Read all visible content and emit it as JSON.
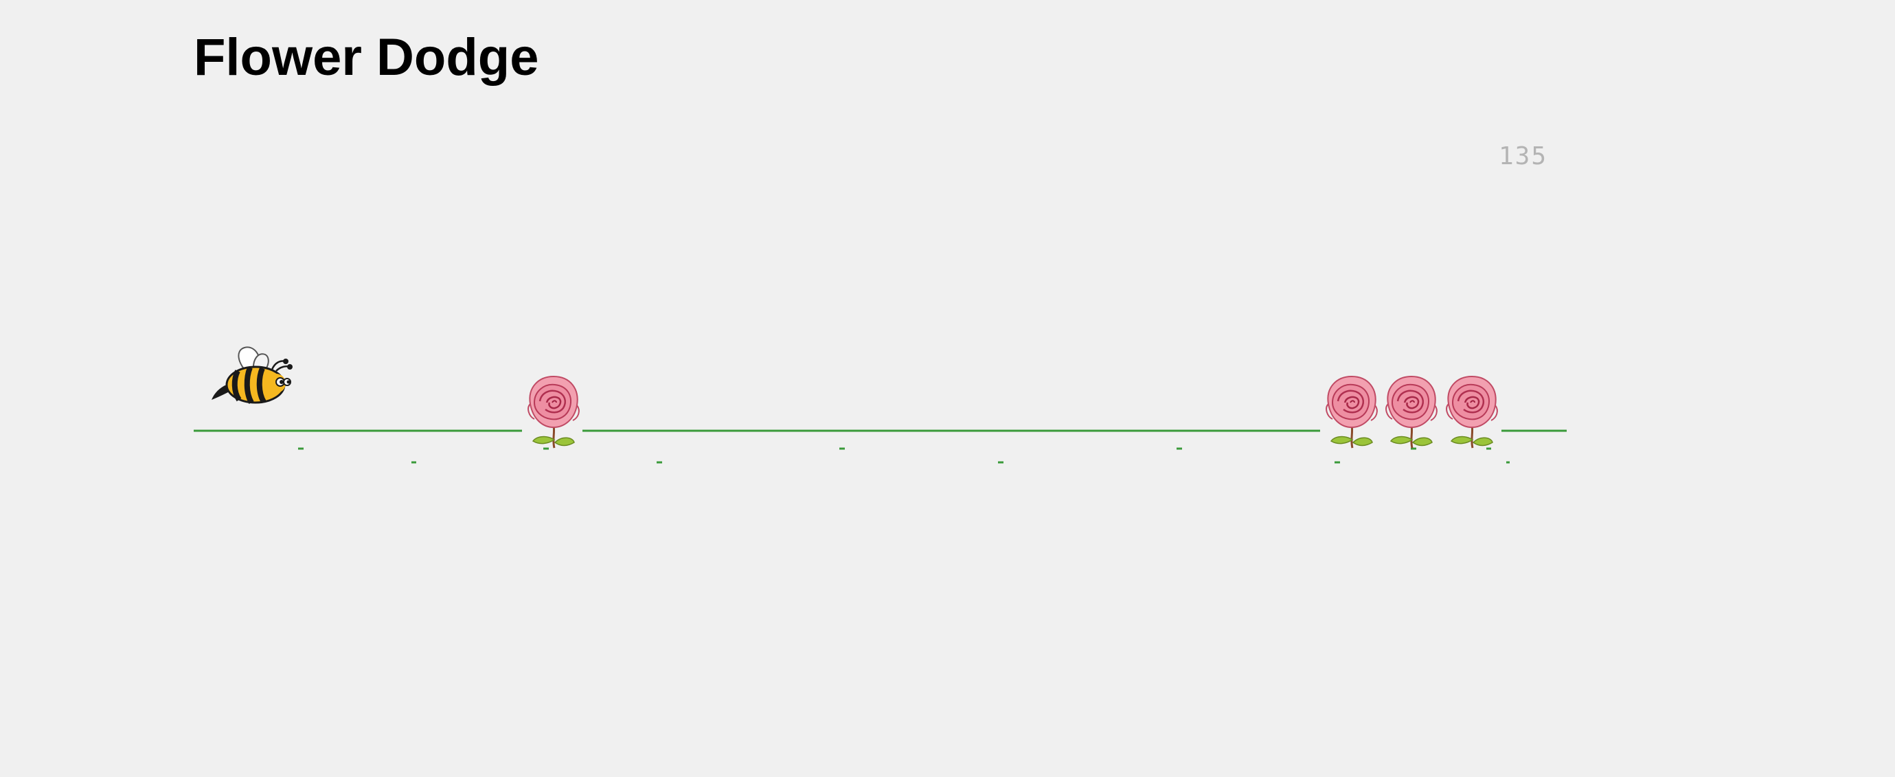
{
  "game": {
    "title": "Flower Dodge",
    "score": "135"
  },
  "icons": {
    "player": "bee-icon",
    "obstacle": "rose-icon"
  },
  "colors": {
    "background": "#f0f0f0",
    "ground": "#3a9a3a",
    "score_text": "#b4b4b4",
    "bee_body": "#f5b820",
    "bee_stripes": "#1a1a1a",
    "rose_petals": "#e87890",
    "rose_leaves": "#8ab830"
  }
}
